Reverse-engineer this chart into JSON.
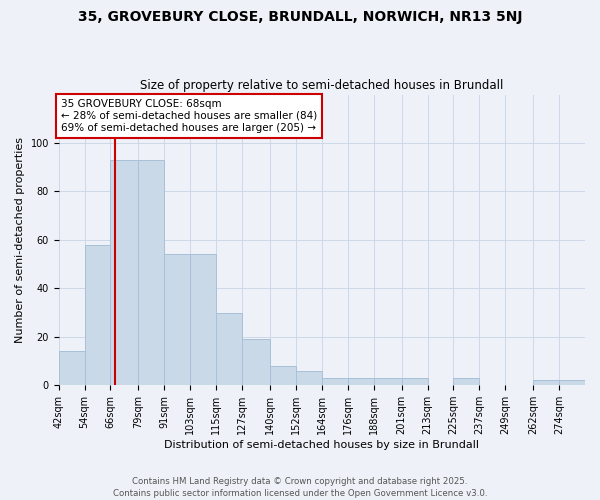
{
  "title": "35, GROVEBURY CLOSE, BRUNDALL, NORWICH, NR13 5NJ",
  "subtitle": "Size of property relative to semi-detached houses in Brundall",
  "xlabel": "Distribution of semi-detached houses by size in Brundall",
  "ylabel": "Number of semi-detached properties",
  "bin_edges": [
    42,
    54,
    66,
    79,
    91,
    103,
    115,
    127,
    140,
    152,
    164,
    176,
    188,
    201,
    213,
    225,
    237,
    249,
    262,
    274,
    286
  ],
  "bar_heights": [
    14,
    58,
    93,
    93,
    54,
    54,
    30,
    19,
    8,
    6,
    3,
    3,
    3,
    3,
    0,
    3,
    0,
    0,
    2,
    2
  ],
  "bar_color": "#c9d9e8",
  "bar_edgecolor": "#a8c0d8",
  "property_line_x": 68,
  "property_label": "35 GROVEBURY CLOSE: 68sqm",
  "smaller_pct": 28,
  "smaller_count": 84,
  "larger_pct": 69,
  "larger_count": 205,
  "annotation_box_color": "#ffffff",
  "annotation_box_edgecolor": "#cc0000",
  "vline_color": "#cc0000",
  "ylim": [
    0,
    120
  ],
  "yticks": [
    0,
    20,
    40,
    60,
    80,
    100
  ],
  "grid_color": "#ccd8e8",
  "bg_color": "#eef2f8",
  "title_fontsize": 10,
  "subtitle_fontsize": 8.5,
  "axis_label_fontsize": 8,
  "tick_fontsize": 7,
  "footer_text": "Contains HM Land Registry data © Crown copyright and database right 2025.\nContains public sector information licensed under the Open Government Licence v3.0."
}
